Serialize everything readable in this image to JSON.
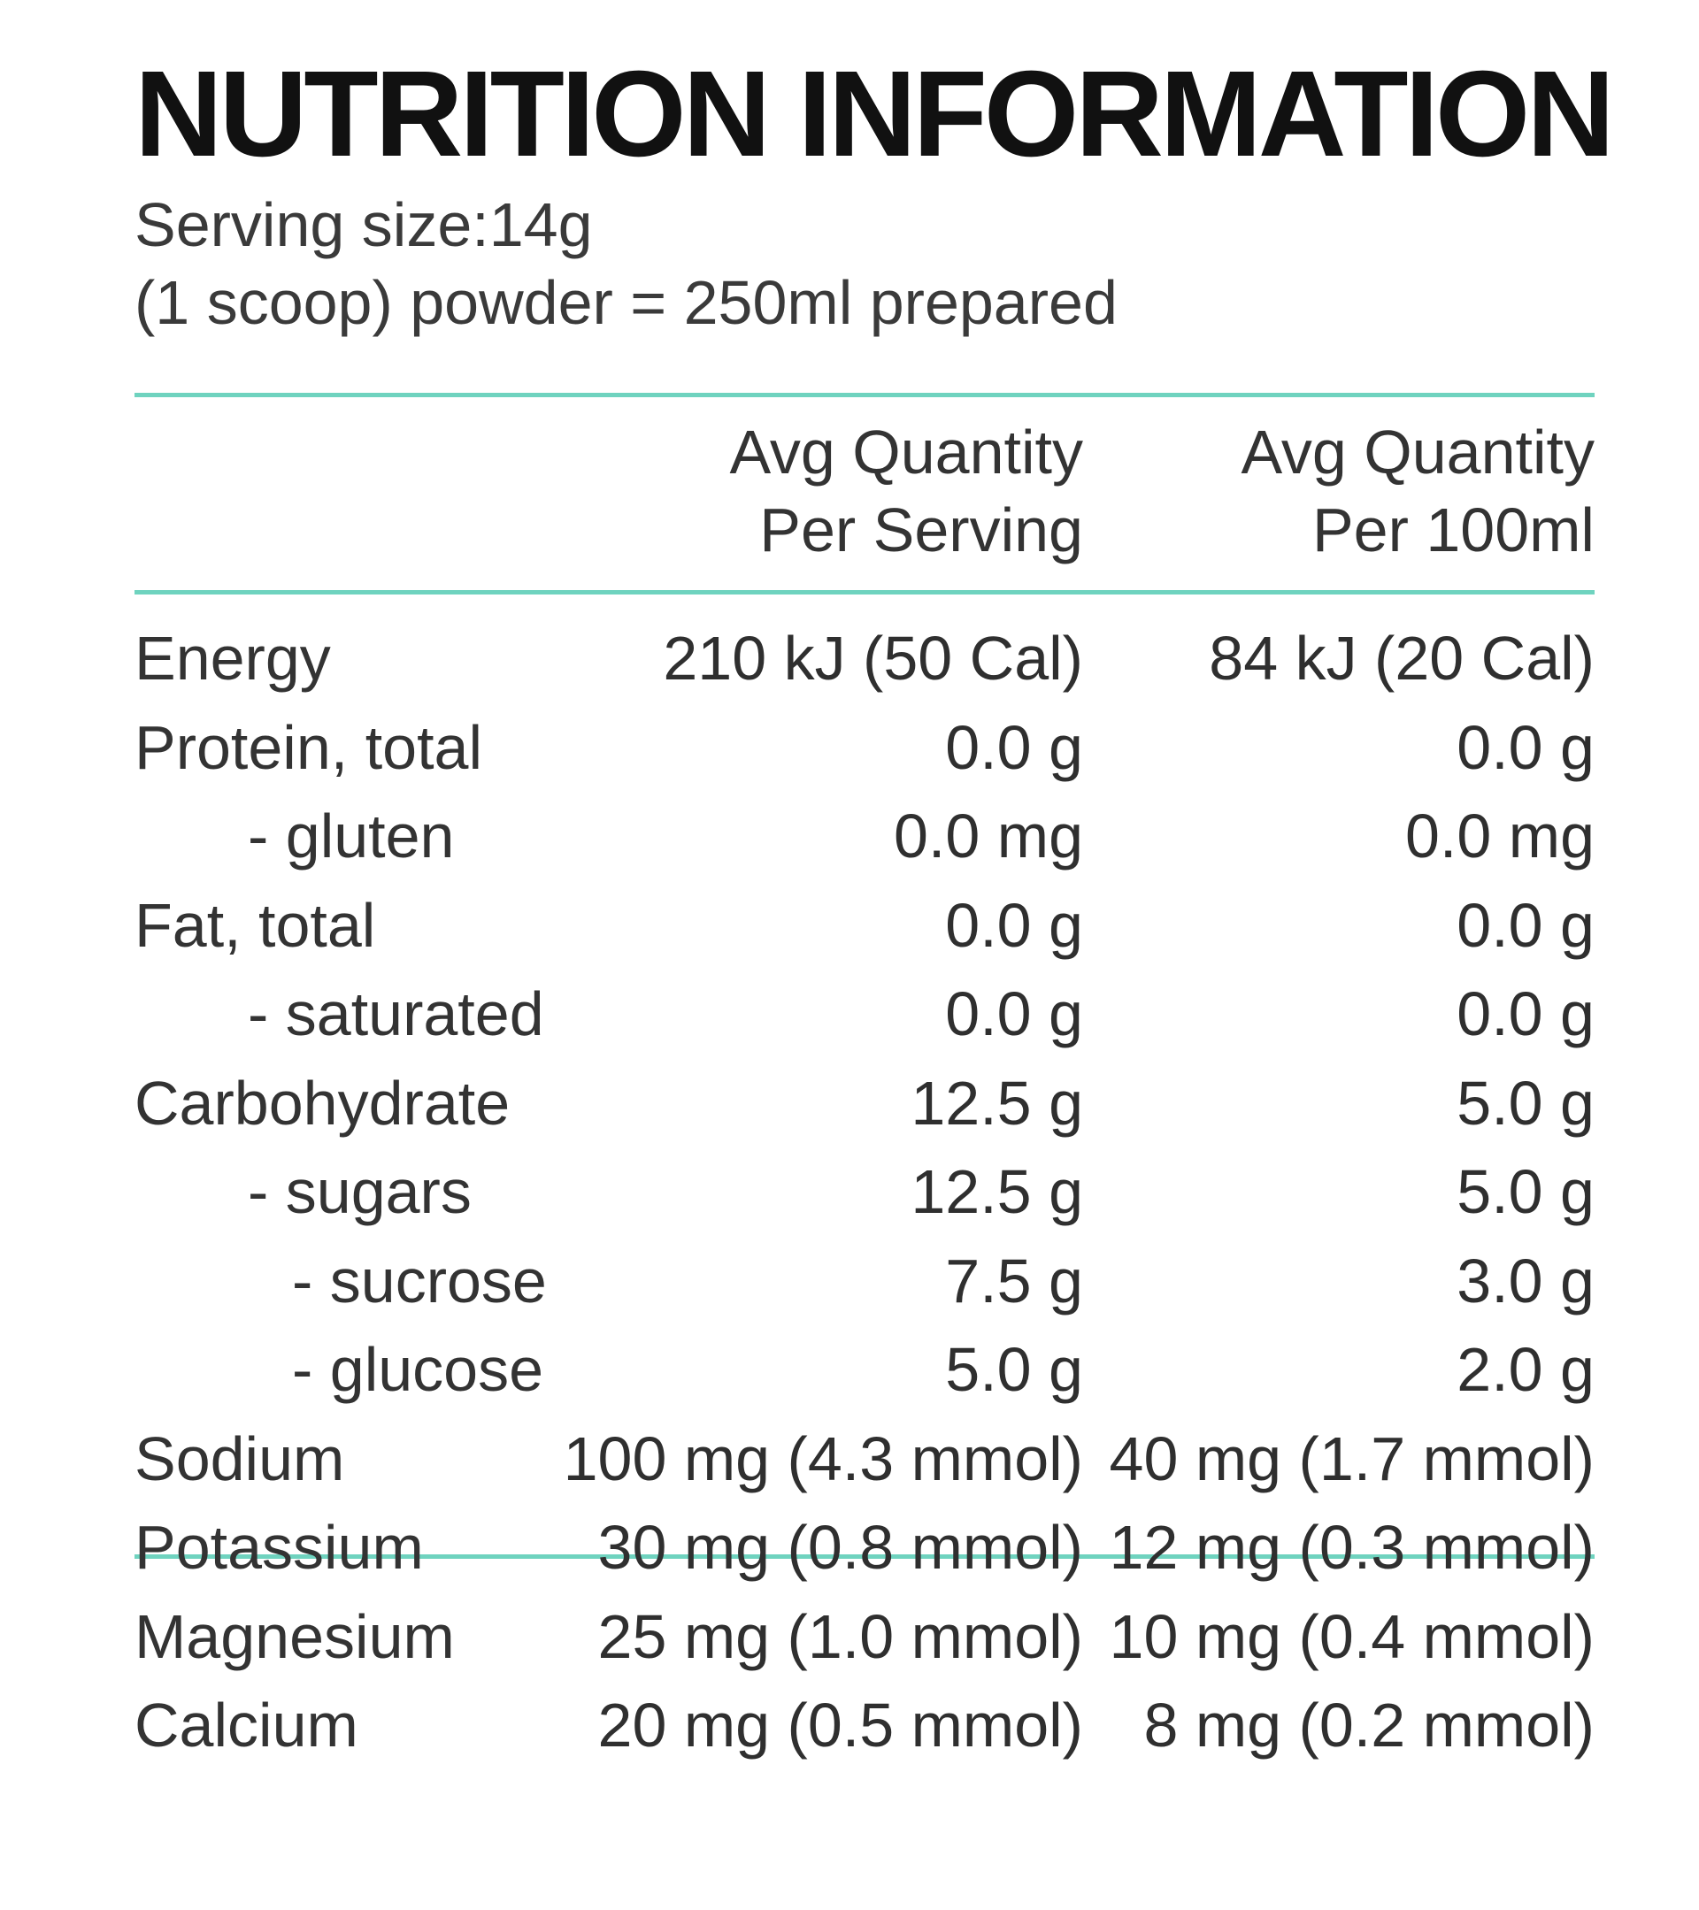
{
  "title": "NUTRITION INFORMATION",
  "serving_size": "Serving size:14g",
  "serving_note": "(1 scoop) powder = 250ml prepared",
  "columns": {
    "per_serving": {
      "line1": "Avg Quantity",
      "line2": "Per Serving"
    },
    "per_100ml": {
      "line1": "Avg Quantity",
      "line2": "Per 100ml"
    }
  },
  "rows": [
    {
      "label": "Energy",
      "indent": 0,
      "per_serving": "210 kJ (50 Cal)",
      "per_100ml": "84 kJ (20 Cal)"
    },
    {
      "label": "Protein, total",
      "indent": 0,
      "per_serving": "0.0 g",
      "per_100ml": "0.0 g"
    },
    {
      "label": "- gluten",
      "indent": 1,
      "per_serving": "0.0 mg",
      "per_100ml": "0.0 mg"
    },
    {
      "label": "Fat, total",
      "indent": 0,
      "per_serving": "0.0 g",
      "per_100ml": "0.0 g"
    },
    {
      "label": "- saturated",
      "indent": 1,
      "per_serving": "0.0 g",
      "per_100ml": "0.0 g"
    },
    {
      "label": "Carbohydrate",
      "indent": 0,
      "per_serving": "12.5 g",
      "per_100ml": "5.0 g"
    },
    {
      "label": "- sugars",
      "indent": 1,
      "per_serving": "12.5 g",
      "per_100ml": "5.0 g"
    },
    {
      "label": "- sucrose",
      "indent": 2,
      "per_serving": "7.5 g",
      "per_100ml": "3.0 g"
    },
    {
      "label": "- glucose",
      "indent": 2,
      "per_serving": "5.0 g",
      "per_100ml": "2.0 g"
    },
    {
      "label": "Sodium",
      "indent": 0,
      "per_serving": "100 mg (4.3 mmol)",
      "per_100ml": "40 mg (1.7 mmol)"
    },
    {
      "label": "Potassium",
      "indent": 0,
      "per_serving": "30 mg (0.8 mmol)",
      "per_100ml": "12 mg (0.3 mmol)"
    },
    {
      "label": "Magnesium",
      "indent": 0,
      "per_serving": "25 mg (1.0 mmol)",
      "per_100ml": "10 mg (0.4 mmol)"
    },
    {
      "label": "Calcium",
      "indent": 0,
      "per_serving": "20 mg (0.5 mmol)",
      "per_100ml": "8 mg (0.2 mmol)"
    }
  ],
  "colors": {
    "rule": "#6fd3bf",
    "text": "#2b2b2b",
    "title": "#111111"
  }
}
